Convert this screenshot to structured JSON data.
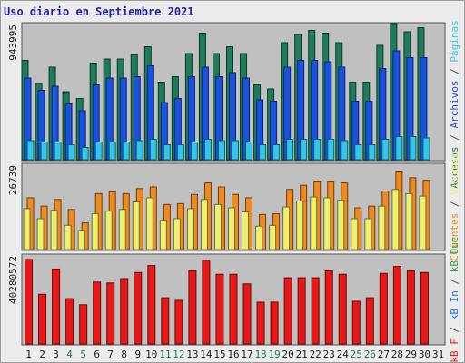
{
  "title": "Uso diario en Septiembre 2021",
  "colors": {
    "visits": "#1e7c5a",
    "pages": "#1a52e0",
    "hits": "#30c8e8",
    "files": "#f0f070",
    "clients": "#f08a20",
    "bw": "#e81818",
    "weekday_label": "#202020",
    "weekend_label": "#207a50",
    "title": "#2020a0",
    "panel_bg": "#c0c0c0"
  },
  "chart_data": [
    {
      "type": "bar",
      "title": "Uso diario en Septiembre 2021",
      "ylabel_max": "943995",
      "categories": [
        "1",
        "2",
        "3",
        "4",
        "5",
        "6",
        "7",
        "8",
        "9",
        "10",
        "11",
        "12",
        "13",
        "14",
        "15",
        "16",
        "17",
        "18",
        "19",
        "20",
        "21",
        "22",
        "23",
        "24",
        "25",
        "26",
        "27",
        "28",
        "29",
        "30",
        "31"
      ],
      "weekend": [
        4,
        5,
        11,
        12,
        18,
        19,
        25,
        26
      ],
      "legend": [
        "Accesos",
        "Archivos",
        "Páginas"
      ],
      "series": [
        {
          "name": "Accesos",
          "values": [
            0.73,
            0.56,
            0.68,
            0.5,
            0.45,
            0.71,
            0.74,
            0.74,
            0.77,
            0.83,
            0.57,
            0.61,
            0.78,
            0.93,
            0.78,
            0.83,
            0.78,
            0.55,
            0.52,
            0.86,
            0.92,
            0.95,
            0.93,
            0.86,
            0.57,
            0.57,
            0.84,
            1.0,
            0.94,
            0.97,
            0
          ]
        },
        {
          "name": "Archivos",
          "values": [
            0.6,
            0.51,
            0.54,
            0.41,
            0.36,
            0.55,
            0.6,
            0.6,
            0.61,
            0.69,
            0.42,
            0.45,
            0.61,
            0.68,
            0.61,
            0.64,
            0.6,
            0.44,
            0.43,
            0.68,
            0.73,
            0.73,
            0.72,
            0.68,
            0.43,
            0.43,
            0.67,
            0.8,
            0.75,
            0.75,
            0
          ]
        },
        {
          "name": "Páginas",
          "values": [
            0.14,
            0.13,
            0.13,
            0.11,
            0.09,
            0.13,
            0.13,
            0.13,
            0.14,
            0.15,
            0.11,
            0.11,
            0.13,
            0.15,
            0.14,
            0.14,
            0.13,
            0.11,
            0.11,
            0.15,
            0.15,
            0.15,
            0.15,
            0.14,
            0.11,
            0.11,
            0.15,
            0.17,
            0.17,
            0.16,
            0
          ]
        }
      ]
    },
    {
      "type": "bar",
      "ylabel_max": "26739",
      "categories": [
        "1",
        "2",
        "3",
        "4",
        "5",
        "6",
        "7",
        "8",
        "9",
        "10",
        "11",
        "12",
        "13",
        "14",
        "15",
        "16",
        "17",
        "18",
        "19",
        "20",
        "21",
        "22",
        "23",
        "24",
        "25",
        "26",
        "27",
        "28",
        "29",
        "30",
        "31"
      ],
      "legend": [
        "Clientes",
        "Visitas"
      ],
      "series": [
        {
          "name": "Clientes",
          "values": [
            0.62,
            0.52,
            0.6,
            0.48,
            0.32,
            0.67,
            0.69,
            0.67,
            0.73,
            0.75,
            0.54,
            0.55,
            0.66,
            0.8,
            0.75,
            0.66,
            0.62,
            0.42,
            0.43,
            0.72,
            0.77,
            0.82,
            0.82,
            0.8,
            0.5,
            0.52,
            0.7,
            0.94,
            0.86,
            0.83,
            0
          ]
        },
        {
          "name": "Visitas",
          "values": [
            0.49,
            0.37,
            0.47,
            0.29,
            0.23,
            0.43,
            0.46,
            0.48,
            0.57,
            0.62,
            0.35,
            0.37,
            0.49,
            0.6,
            0.54,
            0.5,
            0.45,
            0.28,
            0.29,
            0.51,
            0.58,
            0.63,
            0.62,
            0.59,
            0.37,
            0.37,
            0.52,
            0.72,
            0.67,
            0.64,
            0
          ]
        }
      ]
    },
    {
      "type": "bar",
      "ylabel_max": "40280572",
      "categories": [
        "1",
        "2",
        "3",
        "4",
        "5",
        "6",
        "7",
        "8",
        "9",
        "10",
        "11",
        "12",
        "13",
        "14",
        "15",
        "16",
        "17",
        "18",
        "19",
        "20",
        "21",
        "22",
        "23",
        "24",
        "25",
        "26",
        "27",
        "28",
        "29",
        "30",
        "31"
      ],
      "legend": [
        "kB F",
        "kB In",
        "kB Out"
      ],
      "series": [
        {
          "name": "kB F",
          "values": [
            0.97,
            0.57,
            0.86,
            0.52,
            0.45,
            0.71,
            0.7,
            0.75,
            0.82,
            0.9,
            0.53,
            0.5,
            0.84,
            0.96,
            0.8,
            0.8,
            0.69,
            0.48,
            0.48,
            0.76,
            0.76,
            0.76,
            0.84,
            0.8,
            0.49,
            0.53,
            0.81,
            0.89,
            0.84,
            0.82,
            0
          ]
        }
      ]
    }
  ]
}
